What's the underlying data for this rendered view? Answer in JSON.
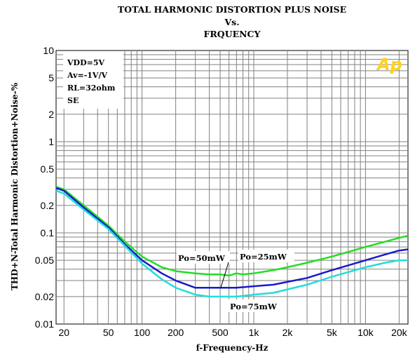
{
  "chart_data": {
    "type": "line",
    "title": [
      "TOTAL HARMONIC DISTORTION PLUS NOISE",
      "Vs.",
      "FRQUENCY"
    ],
    "xlabel": "f-Frequency-Hz",
    "ylabel": "THD+N-Total Harmonic Distortion+Noise-%",
    "x_scale": "log",
    "y_scale": "log",
    "xlim": [
      17,
      24000
    ],
    "ylim": [
      0.01,
      10
    ],
    "x_ticks": [
      {
        "value": 20,
        "label": "20"
      },
      {
        "value": 50,
        "label": "50"
      },
      {
        "value": 100,
        "label": "100"
      },
      {
        "value": 200,
        "label": "200"
      },
      {
        "value": 500,
        "label": "500"
      },
      {
        "value": 1000,
        "label": "1k"
      },
      {
        "value": 2000,
        "label": "2k"
      },
      {
        "value": 5000,
        "label": "5k"
      },
      {
        "value": 10000,
        "label": "10k"
      },
      {
        "value": 20000,
        "label": "20k"
      }
    ],
    "y_ticks": [
      {
        "value": 10,
        "label": "10"
      },
      {
        "value": 5,
        "label": "5"
      },
      {
        "value": 2,
        "label": "2"
      },
      {
        "value": 1,
        "label": "1"
      },
      {
        "value": 0.5,
        "label": "0.5"
      },
      {
        "value": 0.2,
        "label": "0.2"
      },
      {
        "value": 0.1,
        "label": "0.1"
      },
      {
        "value": 0.05,
        "label": "0.05"
      },
      {
        "value": 0.02,
        "label": "0.02"
      },
      {
        "value": 0.01,
        "label": "0.01"
      }
    ],
    "grid": true,
    "conditions": [
      "VDD=5V",
      "Av=-1V/V",
      "RL=32ohm",
      "SE"
    ],
    "logo_text": "Ap",
    "series": [
      {
        "name": "Po=25mW",
        "color": "#22dd22",
        "x": [
          17,
          20,
          30,
          50,
          70,
          100,
          150,
          200,
          300,
          400,
          500,
          600,
          700,
          800,
          1000,
          1500,
          2000,
          3000,
          5000,
          10000,
          15000,
          20000,
          24000
        ],
        "y": [
          0.32,
          0.3,
          0.2,
          0.12,
          0.08,
          0.055,
          0.042,
          0.038,
          0.036,
          0.035,
          0.035,
          0.034,
          0.036,
          0.035,
          0.036,
          0.039,
          0.042,
          0.047,
          0.055,
          0.07,
          0.08,
          0.088,
          0.093
        ]
      },
      {
        "name": "Po=50mW",
        "color": "#1a1acc",
        "x": [
          17,
          20,
          30,
          50,
          70,
          100,
          150,
          200,
          300,
          400,
          500,
          700,
          1000,
          1500,
          2000,
          3000,
          5000,
          10000,
          15000,
          20000,
          24000
        ],
        "y": [
          0.31,
          0.29,
          0.19,
          0.115,
          0.075,
          0.05,
          0.036,
          0.03,
          0.025,
          0.025,
          0.025,
          0.025,
          0.026,
          0.027,
          0.029,
          0.032,
          0.039,
          0.05,
          0.058,
          0.064,
          0.066
        ]
      },
      {
        "name": "Po=75mW",
        "color": "#22dddd",
        "x": [
          17,
          20,
          30,
          50,
          70,
          100,
          150,
          200,
          300,
          400,
          500,
          700,
          1000,
          1500,
          2000,
          3000,
          5000,
          10000,
          15000,
          20000,
          24000
        ],
        "y": [
          0.29,
          0.27,
          0.18,
          0.11,
          0.072,
          0.046,
          0.031,
          0.025,
          0.021,
          0.02,
          0.02,
          0.02,
          0.021,
          0.022,
          0.024,
          0.027,
          0.033,
          0.042,
          0.047,
          0.05,
          0.05
        ]
      }
    ],
    "annotations": [
      {
        "text": "Po=50mW",
        "series": "Po=50mW"
      },
      {
        "text": "Po=25mW",
        "series": "Po=25mW"
      },
      {
        "text": "Po=75mW",
        "series": "Po=75mW"
      }
    ]
  }
}
